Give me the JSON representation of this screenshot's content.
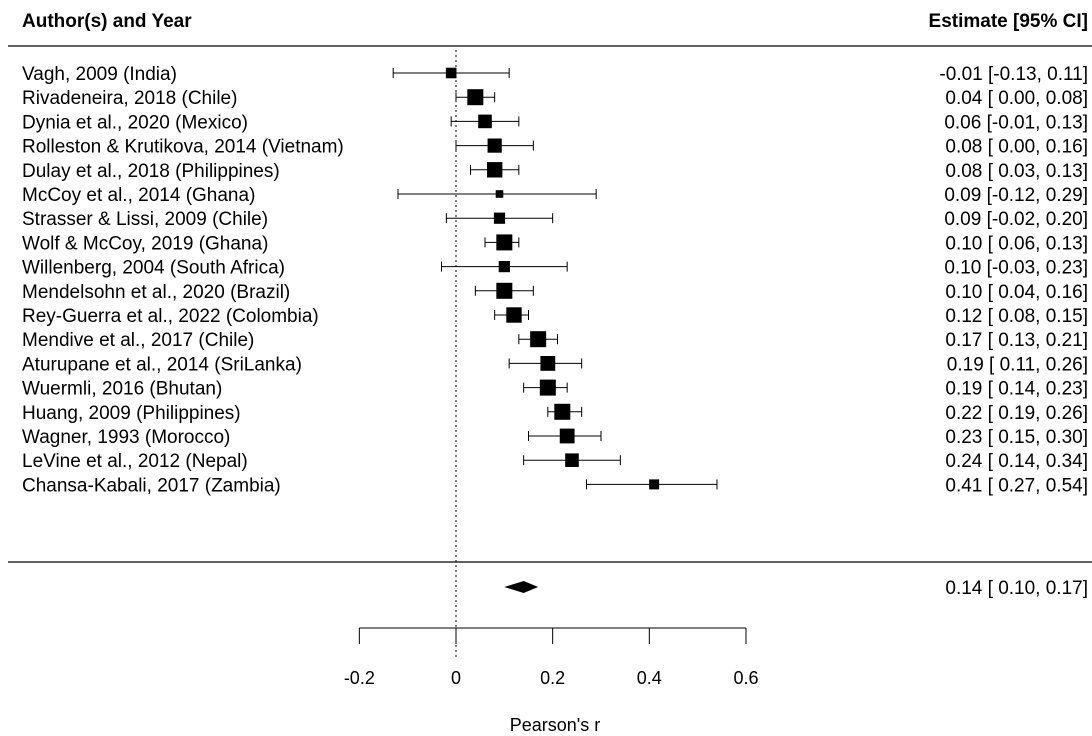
{
  "chart_data": {
    "type": "forest",
    "header_left": "Author(s) and Year",
    "header_right": "Estimate [95% CI]",
    "xlabel": "Pearson's r",
    "x_ticks": [
      -0.2,
      0,
      0.2,
      0.4,
      0.6
    ],
    "x_tick_labels": [
      "-0.2",
      "0",
      "0.2",
      "0.4",
      "0.6"
    ],
    "reference_line": 0,
    "studies": [
      {
        "label": "Vagh, 2009 (India)",
        "est": -0.01,
        "lo": -0.13,
        "hi": 0.11,
        "ci_text": "-0.01 [-0.13, 0.11]",
        "weight": 0.55
      },
      {
        "label": "Rivadeneira, 2018 (Chile)",
        "est": 0.04,
        "lo": 0.0,
        "hi": 0.08,
        "ci_text": "0.04 [ 0.00, 0.08]",
        "weight": 1.0
      },
      {
        "label": "Dynia et al., 2020 (Mexico)",
        "est": 0.06,
        "lo": -0.01,
        "hi": 0.13,
        "ci_text": "0.06 [-0.01, 0.13]",
        "weight": 0.8
      },
      {
        "label": "Rolleston & Krutikova, 2014 (Vietnam)",
        "est": 0.08,
        "lo": 0.0,
        "hi": 0.16,
        "ci_text": "0.08 [ 0.00, 0.16]",
        "weight": 0.85
      },
      {
        "label": "Dulay et al., 2018 (Philippines)",
        "est": 0.08,
        "lo": 0.03,
        "hi": 0.13,
        "ci_text": "0.08 [ 0.03, 0.13]",
        "weight": 0.95
      },
      {
        "label": "McCoy et al., 2014 (Ghana)",
        "est": 0.09,
        "lo": -0.12,
        "hi": 0.29,
        "ci_text": "0.09 [-0.12, 0.29]",
        "weight": 0.3
      },
      {
        "label": "Strasser & Lissi, 2009 (Chile)",
        "est": 0.09,
        "lo": -0.02,
        "hi": 0.2,
        "ci_text": "0.09 [-0.02, 0.20]",
        "weight": 0.6
      },
      {
        "label": "Wolf & McCoy, 2019 (Ghana)",
        "est": 0.1,
        "lo": 0.06,
        "hi": 0.13,
        "ci_text": "0.10 [ 0.06, 0.13]",
        "weight": 1.0
      },
      {
        "label": "Willenberg, 2004 (South Africa)",
        "est": 0.1,
        "lo": -0.03,
        "hi": 0.23,
        "ci_text": "0.10 [-0.03, 0.23]",
        "weight": 0.6
      },
      {
        "label": "Mendelsohn et al., 2020 (Brazil)",
        "est": 0.1,
        "lo": 0.04,
        "hi": 0.16,
        "ci_text": "0.10 [ 0.04, 0.16]",
        "weight": 1.0
      },
      {
        "label": "Rey-Guerra et al., 2022 (Colombia)",
        "est": 0.12,
        "lo": 0.08,
        "hi": 0.15,
        "ci_text": "0.12 [ 0.08, 0.15]",
        "weight": 0.95
      },
      {
        "label": "Mendive et al., 2017 (Chile)",
        "est": 0.17,
        "lo": 0.13,
        "hi": 0.21,
        "ci_text": "0.17 [ 0.13, 0.21]",
        "weight": 1.0
      },
      {
        "label": "Aturupane et al., 2014 (SriLanka)",
        "est": 0.19,
        "lo": 0.11,
        "hi": 0.26,
        "ci_text": "0.19 [ 0.11, 0.26]",
        "weight": 0.9
      },
      {
        "label": "Wuermli, 2016 (Bhutan)",
        "est": 0.19,
        "lo": 0.14,
        "hi": 0.23,
        "ci_text": "0.19 [ 0.14, 0.23]",
        "weight": 1.0
      },
      {
        "label": "Huang, 2009 (Philippines)",
        "est": 0.22,
        "lo": 0.19,
        "hi": 0.26,
        "ci_text": "0.22 [ 0.19, 0.26]",
        "weight": 1.0
      },
      {
        "label": "Wagner, 1993 (Morocco)",
        "est": 0.23,
        "lo": 0.15,
        "hi": 0.3,
        "ci_text": "0.23 [ 0.15, 0.30]",
        "weight": 0.9
      },
      {
        "label": "LeVine et al., 2012 (Nepal)",
        "est": 0.24,
        "lo": 0.14,
        "hi": 0.34,
        "ci_text": "0.24 [ 0.14, 0.34]",
        "weight": 0.8
      },
      {
        "label": "Chansa-Kabali, 2017 (Zambia)",
        "est": 0.41,
        "lo": 0.27,
        "hi": 0.54,
        "ci_text": "0.41 [ 0.27, 0.54]",
        "weight": 0.5
      }
    ],
    "summary": {
      "est": 0.14,
      "lo": 0.1,
      "hi": 0.17,
      "ci_text": "0.14 [ 0.10, 0.17]"
    }
  }
}
